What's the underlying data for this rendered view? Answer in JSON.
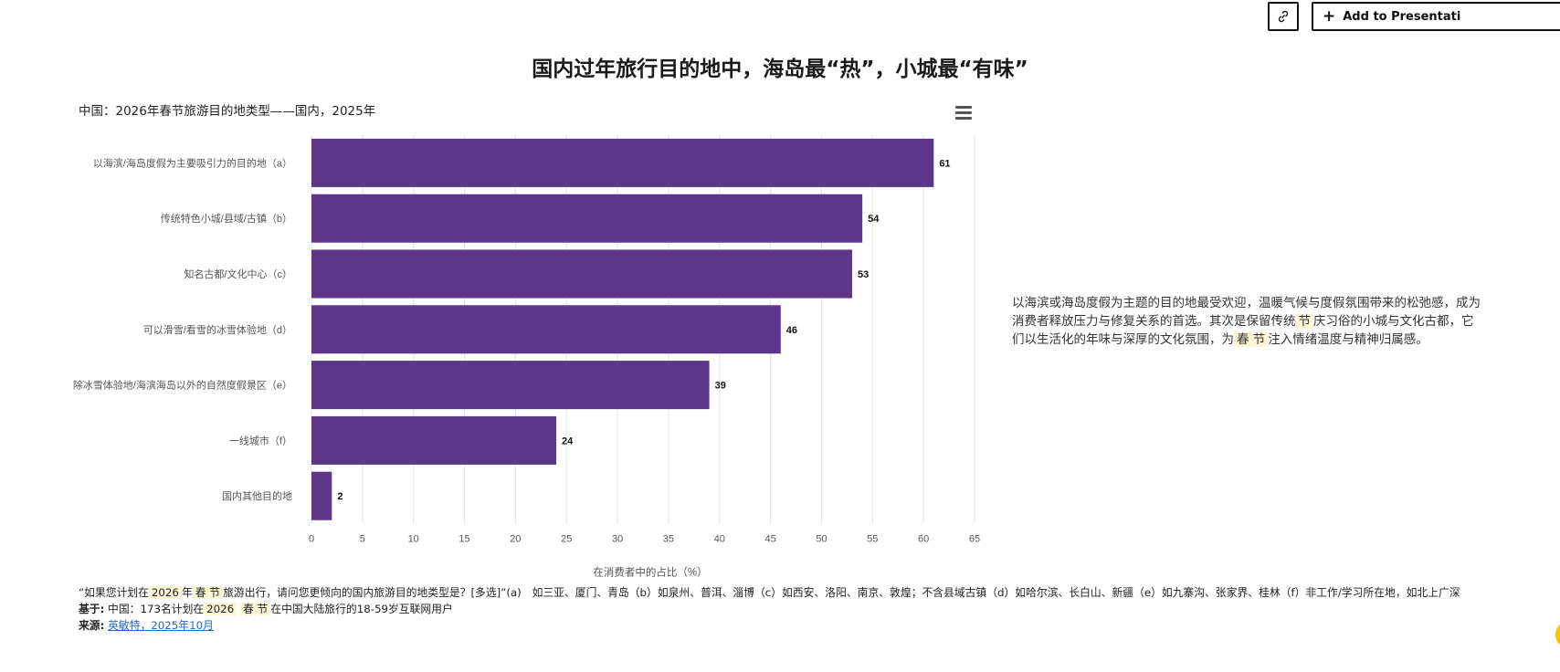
{
  "toolbar": {
    "link_icon": "link-icon",
    "add_label": "Add to Presentati",
    "add_icon": "plus-icon"
  },
  "title": "国内过年旅行目的地中，海岛最“热”，小城最“有味”",
  "menu_icon": "hamburger-menu-icon",
  "side_note": {
    "p1": "以海滨或海岛度假为主题的目的地最受欢迎，温暖气候与度假氛围带来的松弛感，成为消费者释放压力与修复关系的首选。其次是保留传统",
    "h1": "节",
    "p2": "庆习俗的小城与文化古都，它们以生活化的年味与深厚的文化氛围，为",
    "h2": "春 节",
    "p3": "注入情绪温度与精神归属感。"
  },
  "footer": {
    "q1": "“如果您计划在",
    "q_h1": "2026",
    "q2": "年",
    "q_h2": "春 节",
    "q3": "旅游出行，请问您更倾向的国内旅游目的地类型是？[多选]”(a)　如三亚、厦门、青岛（b）如泉州、普洱、淄博（c）如西安、洛阳、南京、敦煌；不含县域古镇（d）如哈尔滨、长白山、新疆（e）如九寨沟、张家界、桂林（f）非工作/学习所在地，如北上广深",
    "base_label": "基于:",
    "base1": " 中国：173名计划在",
    "base_h1": "2026",
    "base_h2": "春 节",
    "base2": "在中国大陆旅行的18-59岁互联网用户",
    "source_label": "来源:",
    "source_link": "英敏特，2025年10月"
  },
  "colors": {
    "bar": "#5d3589",
    "grid": "#e3e3e3",
    "accent": "#f5c400"
  },
  "chart_data": {
    "type": "bar",
    "orientation": "horizontal",
    "title": "中国：2026年春节旅游目的地类型——国内，2025年",
    "categories": [
      "以海滨/海岛度假为主要吸引力的目的地（a）",
      "传统特色小城/县域/古镇（b）",
      "知名古都/文化中心（c）",
      "可以滑雪/看雪的冰雪体验地（d）",
      "除冰雪体验地/海滨海岛以外的自然度假景区（e）",
      "一线城市（f）",
      "国内其他目的地"
    ],
    "values": [
      61,
      54,
      53,
      46,
      39,
      24,
      2
    ],
    "xlabel": "在消费者中的占比（%）",
    "xlim": [
      0,
      65
    ],
    "xticks": [
      "0",
      "5",
      "10",
      "15",
      "20",
      "25",
      "30",
      "35",
      "40",
      "45",
      "50",
      "55",
      "60",
      "65"
    ],
    "grid": true
  }
}
